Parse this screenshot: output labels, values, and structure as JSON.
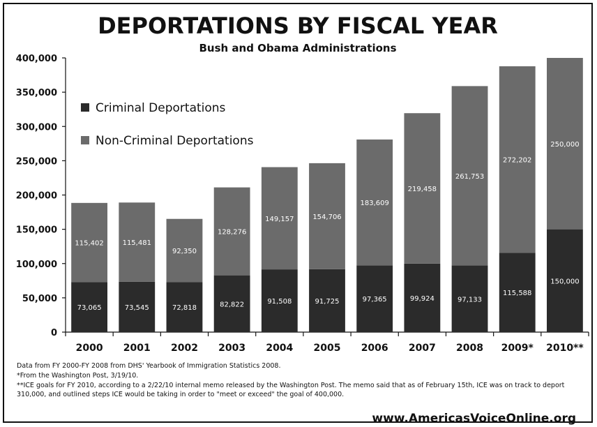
{
  "chart_data": {
    "type": "bar",
    "stacked": true,
    "title": "DEPORTATIONS BY FISCAL YEAR",
    "subtitle": "Bush and Obama Administrations",
    "categories": [
      "2000",
      "2001",
      "2002",
      "2003",
      "2004",
      "2005",
      "2006",
      "2007",
      "2008",
      "2009*",
      "2010**"
    ],
    "series": [
      {
        "name": "Criminal Deportations",
        "color": "#2b2b2b",
        "values": [
          73065,
          73545,
          72818,
          82822,
          91508,
          91725,
          97365,
          99924,
          97133,
          115588,
          150000
        ],
        "labels": [
          "73,065",
          "73,545",
          "72,818",
          "82,822",
          "91,508",
          "91,725",
          "97,365",
          "99,924",
          "97,133",
          "115,588",
          "150,000"
        ]
      },
      {
        "name": "Non-Criminal Deportations",
        "color": "#6b6b6b",
        "values": [
          115402,
          115481,
          92350,
          128276,
          149157,
          154706,
          183609,
          219458,
          261753,
          272202,
          250000
        ],
        "labels": [
          "115,402",
          "115,481",
          "92,350",
          "128,276",
          "149,157",
          "154,706",
          "183,609",
          "219,458",
          "261,753",
          "272,202",
          "250,000"
        ]
      }
    ],
    "ylim": [
      0,
      400000
    ],
    "yticks": [
      0,
      50000,
      100000,
      150000,
      200000,
      250000,
      300000,
      350000,
      400000
    ],
    "ytick_labels": [
      "0",
      "50,000",
      "100,000",
      "150,000",
      "200,000",
      "250,000",
      "300,000",
      "350,000",
      "400,000"
    ],
    "grid": false,
    "legend_position": "top-left"
  },
  "notes": {
    "source": "Data from FY 2000-FY 2008 from DHS' Yearbook of Immigration Statistics 2008.",
    "footnote1": "*From the Washington Post, 3/19/10.",
    "footnote2": "**ICE goals for FY 2010, according to a 2/22/10 internal memo released by the Washington Post. The memo said that as of February 15th, ICE was on track to deport 310,000, and outlined steps ICE would be taking in order to \"meet or exceed\" the goal of 400,000."
  },
  "website": "www.AmericasVoiceOnline.org"
}
